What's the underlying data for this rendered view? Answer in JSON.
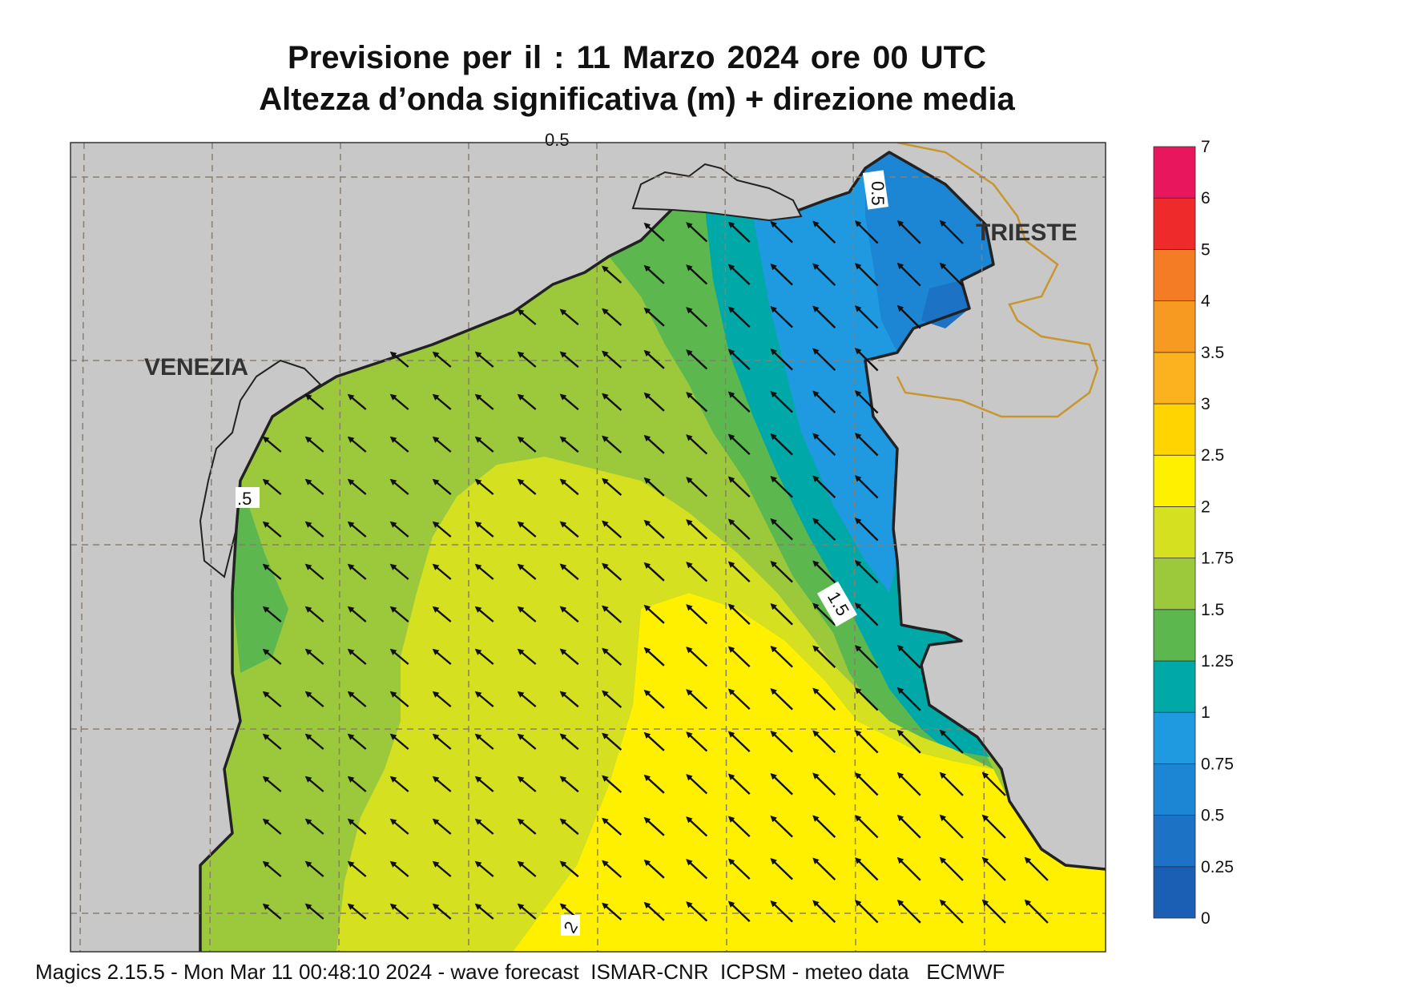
{
  "title": {
    "line1": "Previsione per il  :  11   Marzo   2024   ore 00 UTC",
    "line2": "Altezza d’onda significativa (m) + direzione media"
  },
  "map": {
    "cities": [
      "VENEZIA",
      "TRIESTE"
    ],
    "contour_labels": [
      "0.5",
      "1.5",
      ".5",
      "2",
      "0.5"
    ],
    "arrow_direction": "north-west",
    "colors": {
      "land": "#c8c8c8",
      "coastline": "#222222",
      "border": "#c8962e",
      "grid": "#8a7e70"
    }
  },
  "colorbar": {
    "labels": [
      "0",
      "0.25",
      "0.5",
      "0.75",
      "1",
      "1.25",
      "1.5",
      "1.75",
      "2",
      "2.5",
      "3",
      "3.5",
      "4",
      "5",
      "6",
      "7"
    ],
    "colors": [
      "#1a5fb4",
      "#1c72c4",
      "#1d86d4",
      "#1f9ae0",
      "#00a8a8",
      "#5cb84e",
      "#9cc83c",
      "#d4e020",
      "#fff000",
      "#ffd400",
      "#fbb21e",
      "#f79a22",
      "#f47c24",
      "#ee2a2a",
      "#e8175d"
    ]
  },
  "footer": "Magics 2.15.5 - Mon Mar 11 00:48:10 2024 - wave forecast  ISMAR-CNR  ICPSM - meteo data   ECMWF"
}
